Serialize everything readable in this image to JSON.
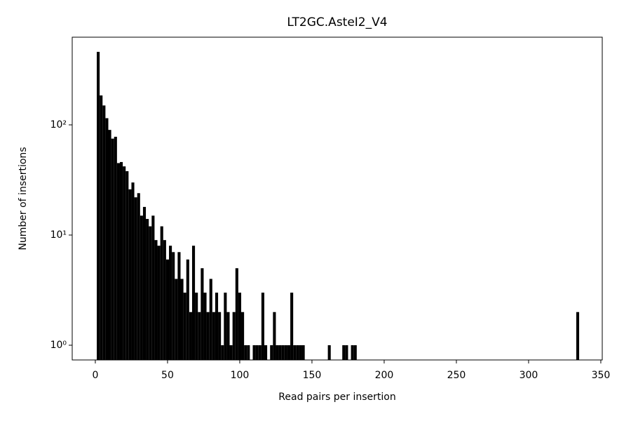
{
  "chart_data": {
    "type": "histogram",
    "title": "LT2GC.AsteI2_V4",
    "x_label": "Read pairs per insertion",
    "y_label": "Number of insertions",
    "bins": [
      1,
      3,
      5,
      7,
      9,
      11,
      13,
      15,
      17,
      19,
      21,
      23,
      25,
      27,
      29,
      31,
      33,
      35,
      37,
      39,
      41,
      43,
      45,
      47,
      49,
      51,
      53,
      55,
      57,
      59,
      61,
      63,
      65,
      67,
      69,
      71,
      73,
      75,
      77,
      79,
      81,
      83,
      85,
      87,
      89,
      91,
      93,
      95,
      97,
      99,
      101,
      103,
      105,
      107,
      109,
      111,
      113,
      115,
      117,
      119,
      121,
      123,
      125,
      127,
      129,
      131,
      133,
      135,
      137,
      139,
      141,
      143,
      145,
      147,
      149,
      151,
      153,
      155,
      157,
      159,
      161,
      163,
      165,
      167,
      169,
      171,
      173,
      175,
      177,
      179,
      181,
      333,
      335
    ],
    "values": [
      460,
      185,
      150,
      115,
      90,
      75,
      78,
      45,
      46,
      42,
      38,
      26,
      30,
      22,
      24,
      15,
      18,
      14,
      12,
      15,
      9,
      8,
      12,
      9,
      6,
      8,
      7,
      4,
      7,
      4,
      3,
      6,
      2,
      8,
      3,
      2,
      5,
      3,
      2,
      4,
      2,
      3,
      2,
      1,
      3,
      2,
      1,
      2,
      5,
      3,
      2,
      1,
      1,
      0,
      1,
      1,
      1,
      3,
      1,
      0,
      1,
      2,
      1,
      1,
      1,
      1,
      1,
      3,
      1,
      1,
      1,
      1,
      0,
      0,
      0,
      0,
      0,
      0,
      0,
      0,
      1,
      0,
      0,
      0,
      0,
      1,
      1,
      0,
      1,
      1,
      0,
      2
    ],
    "color": "#000000",
    "xlim": [
      -16,
      351
    ],
    "xticks": [
      0,
      50,
      100,
      150,
      200,
      250,
      300,
      350
    ],
    "ylim": [
      0.735,
      625
    ],
    "yticks": [
      {
        "value": 1,
        "label": "10⁰"
      },
      {
        "value": 10,
        "label": "10¹"
      },
      {
        "value": 100,
        "label": "10²"
      }
    ],
    "y_scale": "log",
    "grid": false
  }
}
